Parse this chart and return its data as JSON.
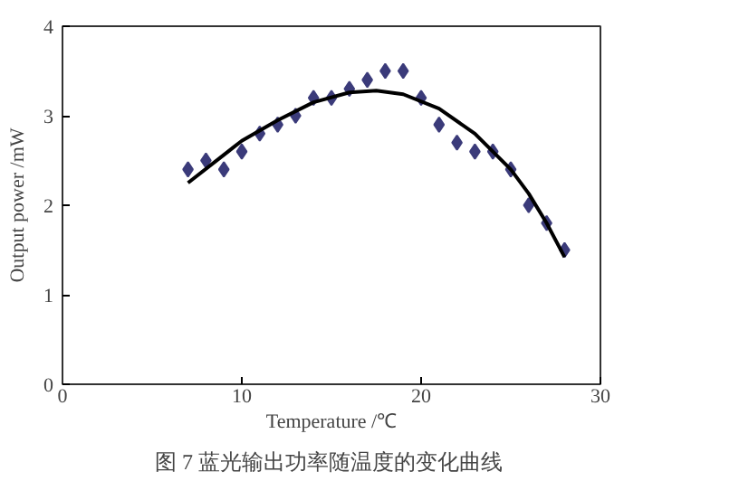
{
  "chart_data": {
    "type": "scatter",
    "xlabel": "Temperature /℃",
    "ylabel": "Output power /mW",
    "annotations": [
      "图 7  蓝光输出功率随温度的变化曲线"
    ],
    "x": [
      7,
      8,
      9,
      10,
      11,
      12,
      13,
      14,
      15,
      16,
      17,
      18,
      19,
      20,
      21,
      22,
      23,
      24,
      25,
      26,
      27,
      28
    ],
    "series": [
      {
        "color": "#3b3b7a",
        "marker": "diamond",
        "values": [
          2.4,
          2.5,
          2.4,
          2.6,
          2.8,
          2.9,
          3.0,
          3.2,
          3.2,
          3.3,
          3.4,
          3.5,
          3.5,
          3.2,
          2.9,
          2.7,
          2.6,
          2.6,
          2.4,
          2.0,
          1.8,
          1.5
        ]
      },
      {
        "type": "line",
        "color": "#000000",
        "line_style": "solid",
        "x": [
          7,
          10,
          12,
          14,
          16,
          17.5,
          19,
          21,
          23,
          25,
          26,
          27,
          28
        ],
        "values": [
          2.25,
          2.72,
          2.95,
          3.15,
          3.26,
          3.28,
          3.24,
          3.08,
          2.8,
          2.4,
          2.13,
          1.8,
          1.42
        ]
      }
    ],
    "xlim": [
      0,
      30
    ],
    "ylim": [
      0,
      4
    ],
    "xticks": [
      0,
      10,
      20,
      30
    ],
    "yticks": [
      0,
      1,
      2,
      3,
      4
    ],
    "grid": false
  }
}
